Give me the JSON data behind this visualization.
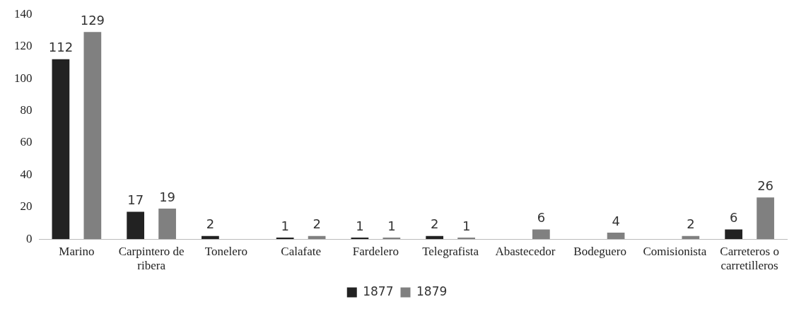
{
  "chart_data": {
    "type": "bar",
    "categories": [
      "Marino",
      "Carpintero de ribera",
      "Tonelero",
      "Calafate",
      "Fardelero",
      "Telegrafista",
      "Abastecedor",
      "Bodeguero",
      "Comisionista",
      "Carreteros o carretilleros"
    ],
    "series": [
      {
        "name": "1877",
        "color": "#222222",
        "values": [
          112,
          17,
          2,
          1,
          1,
          2,
          null,
          null,
          null,
          6
        ]
      },
      {
        "name": "1879",
        "color": "#808080",
        "values": [
          129,
          19,
          null,
          2,
          1,
          1,
          6,
          4,
          2,
          26
        ]
      }
    ],
    "ylim": [
      0,
      140
    ],
    "yticks": [
      0,
      20,
      40,
      60,
      80,
      100,
      120,
      140
    ],
    "grid": false,
    "legend": "bottom",
    "data_labels": true
  }
}
